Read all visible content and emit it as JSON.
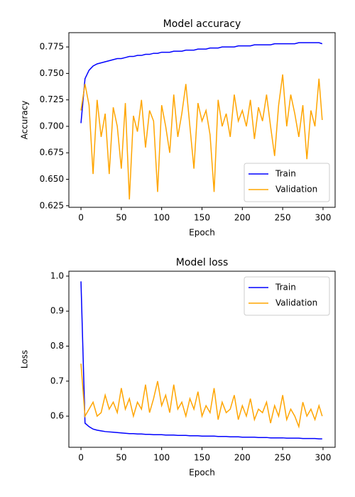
{
  "chart_data": [
    {
      "type": "line",
      "title": "Model accuracy",
      "xlabel": "Epoch",
      "ylabel": "Accuracy",
      "x": [
        0,
        5,
        10,
        15,
        20,
        25,
        30,
        35,
        40,
        45,
        50,
        55,
        60,
        65,
        70,
        75,
        80,
        85,
        90,
        95,
        100,
        105,
        110,
        115,
        120,
        125,
        130,
        135,
        140,
        145,
        150,
        155,
        160,
        165,
        170,
        175,
        180,
        185,
        190,
        195,
        200,
        205,
        210,
        215,
        220,
        225,
        230,
        235,
        240,
        245,
        250,
        255,
        260,
        265,
        270,
        275,
        280,
        285,
        290,
        295,
        299
      ],
      "series": [
        {
          "name": "Train",
          "color": "#0000ff",
          "values": [
            0.703,
            0.745,
            0.753,
            0.757,
            0.759,
            0.76,
            0.761,
            0.762,
            0.763,
            0.764,
            0.764,
            0.765,
            0.766,
            0.766,
            0.767,
            0.767,
            0.768,
            0.768,
            0.769,
            0.769,
            0.77,
            0.77,
            0.77,
            0.771,
            0.771,
            0.771,
            0.772,
            0.772,
            0.772,
            0.773,
            0.773,
            0.773,
            0.774,
            0.774,
            0.774,
            0.775,
            0.775,
            0.775,
            0.775,
            0.776,
            0.776,
            0.776,
            0.776,
            0.777,
            0.777,
            0.777,
            0.777,
            0.777,
            0.778,
            0.778,
            0.778,
            0.778,
            0.778,
            0.778,
            0.779,
            0.779,
            0.779,
            0.779,
            0.779,
            0.779,
            0.778
          ]
        },
        {
          "name": "Validation",
          "color": "#ffa500",
          "values": [
            0.715,
            0.74,
            0.72,
            0.655,
            0.725,
            0.69,
            0.712,
            0.655,
            0.718,
            0.7,
            0.66,
            0.722,
            0.631,
            0.71,
            0.695,
            0.725,
            0.68,
            0.715,
            0.705,
            0.638,
            0.72,
            0.7,
            0.675,
            0.73,
            0.69,
            0.712,
            0.74,
            0.7,
            0.66,
            0.722,
            0.705,
            0.715,
            0.692,
            0.638,
            0.725,
            0.7,
            0.712,
            0.69,
            0.73,
            0.705,
            0.715,
            0.7,
            0.725,
            0.688,
            0.718,
            0.705,
            0.73,
            0.7,
            0.672,
            0.72,
            0.749,
            0.7,
            0.73,
            0.712,
            0.69,
            0.72,
            0.669,
            0.715,
            0.7,
            0.745,
            0.706
          ]
        }
      ],
      "xlim": [
        -15,
        315
      ],
      "ylim": [
        0.6235,
        0.7885
      ],
      "xticks": [
        0,
        50,
        100,
        150,
        200,
        250,
        300
      ],
      "yticks": [
        0.625,
        {
          "value": 0.65,
          "label": "0.650"
        },
        0.675,
        {
          "value": 0.7,
          "label": "0.700"
        },
        0.725,
        {
          "value": 0.75,
          "label": "0.750"
        },
        0.775
      ],
      "legend": "lower right"
    },
    {
      "type": "line",
      "title": "Model loss",
      "xlabel": "Epoch",
      "ylabel": "Loss",
      "x": [
        0,
        5,
        10,
        15,
        20,
        25,
        30,
        35,
        40,
        45,
        50,
        55,
        60,
        65,
        70,
        75,
        80,
        85,
        90,
        95,
        100,
        105,
        110,
        115,
        120,
        125,
        130,
        135,
        140,
        145,
        150,
        155,
        160,
        165,
        170,
        175,
        180,
        185,
        190,
        195,
        200,
        205,
        210,
        215,
        220,
        225,
        230,
        235,
        240,
        245,
        250,
        255,
        260,
        265,
        270,
        275,
        280,
        285,
        290,
        295,
        299
      ],
      "series": [
        {
          "name": "Train",
          "color": "#0000ff",
          "values": [
            0.985,
            0.58,
            0.57,
            0.563,
            0.56,
            0.558,
            0.556,
            0.555,
            0.554,
            0.553,
            0.552,
            0.551,
            0.55,
            0.55,
            0.549,
            0.549,
            0.548,
            0.548,
            0.547,
            0.547,
            0.547,
            0.546,
            0.546,
            0.546,
            0.545,
            0.545,
            0.545,
            0.544,
            0.544,
            0.544,
            0.543,
            0.543,
            0.543,
            0.543,
            0.542,
            0.542,
            0.542,
            0.541,
            0.541,
            0.541,
            0.54,
            0.54,
            0.54,
            0.54,
            0.539,
            0.539,
            0.539,
            0.538,
            0.538,
            0.538,
            0.538,
            0.537,
            0.537,
            0.537,
            0.537,
            0.536,
            0.536,
            0.536,
            0.536,
            0.535,
            0.535
          ]
        },
        {
          "name": "Validation",
          "color": "#ffa500",
          "values": [
            0.75,
            0.6,
            0.62,
            0.64,
            0.6,
            0.61,
            0.66,
            0.62,
            0.64,
            0.61,
            0.68,
            0.62,
            0.65,
            0.6,
            0.64,
            0.62,
            0.69,
            0.61,
            0.65,
            0.7,
            0.63,
            0.66,
            0.61,
            0.69,
            0.62,
            0.64,
            0.6,
            0.65,
            0.62,
            0.67,
            0.6,
            0.63,
            0.61,
            0.68,
            0.59,
            0.64,
            0.61,
            0.62,
            0.66,
            0.59,
            0.63,
            0.6,
            0.65,
            0.59,
            0.62,
            0.61,
            0.64,
            0.58,
            0.63,
            0.6,
            0.66,
            0.59,
            0.62,
            0.6,
            0.57,
            0.64,
            0.6,
            0.62,
            0.59,
            0.63,
            0.6
          ]
        }
      ],
      "xlim": [
        -15,
        315
      ],
      "ylim": [
        0.511,
        1.014
      ],
      "xticks": [
        0,
        50,
        100,
        150,
        200,
        250,
        300
      ],
      "yticks": [
        0.6,
        0.7,
        0.8,
        0.9,
        {
          "value": 1.0,
          "label": "1.0"
        }
      ],
      "legend": "upper right"
    }
  ]
}
